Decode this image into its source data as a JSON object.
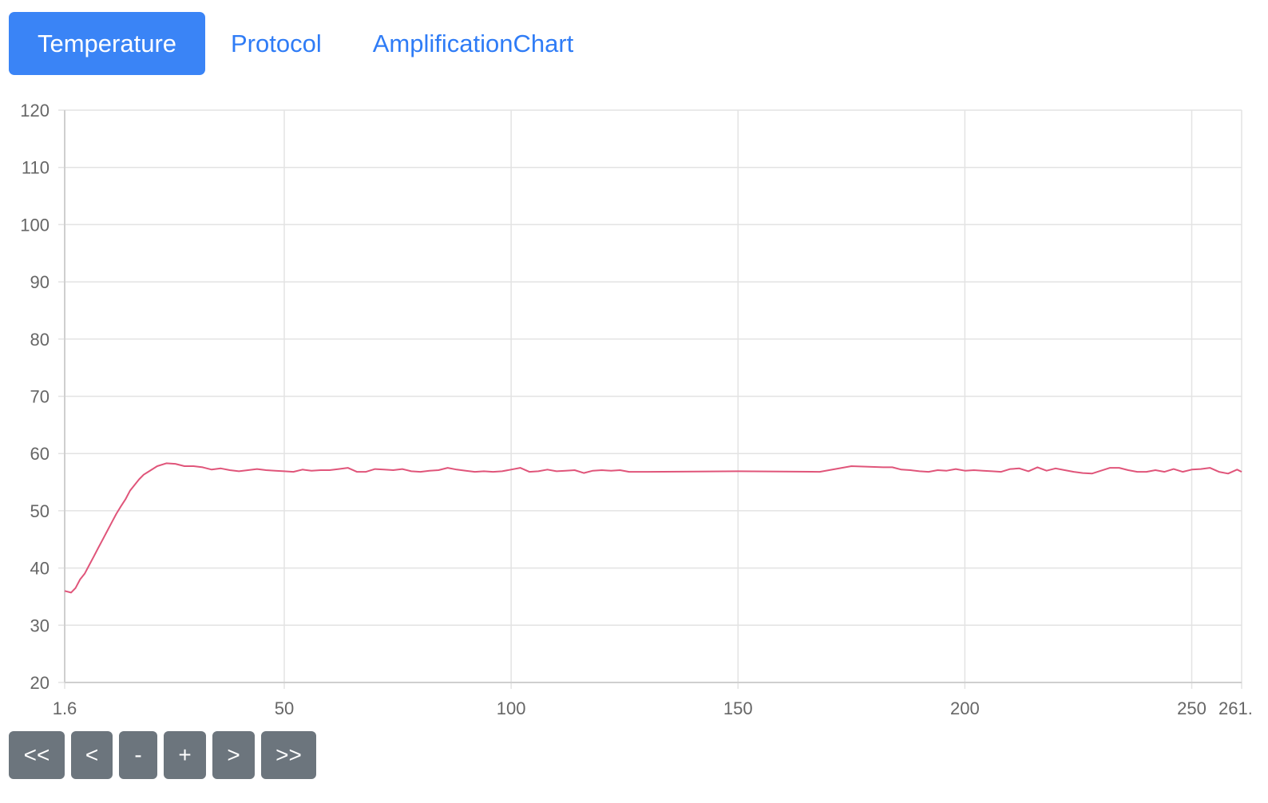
{
  "tabs": [
    {
      "label": "Temperature",
      "active": true
    },
    {
      "label": "Protocol",
      "active": false
    },
    {
      "label": "AmplificationChart",
      "active": false
    }
  ],
  "colors": {
    "tab_active_bg": "#3a84f6",
    "tab_link": "#2f7cf6",
    "series_line": "#e0557a",
    "button_bg": "#6c757d",
    "grid": "#e3e3e3"
  },
  "chart_data": {
    "type": "line",
    "title": "",
    "xlabel": "",
    "ylabel": "",
    "xlim": [
      1.6,
      261
    ],
    "ylim": [
      20,
      120
    ],
    "x_ticks": [
      1.6,
      50,
      100,
      150,
      200,
      250,
      261
    ],
    "x_tick_labels": [
      "1.6",
      "50",
      "100",
      "150",
      "200",
      "250",
      "261."
    ],
    "y_ticks": [
      20,
      30,
      40,
      50,
      60,
      70,
      80,
      90,
      100,
      110,
      120
    ],
    "y_tick_labels": [
      "20",
      "30",
      "40",
      "50",
      "60",
      "70",
      "80",
      "90",
      "100",
      "110",
      "120"
    ],
    "grid": true,
    "legend": "none",
    "series": [
      {
        "x": [
          1.6,
          3,
          4,
          5,
          6,
          7,
          8,
          9,
          10,
          11,
          12,
          13,
          14,
          15,
          16,
          17,
          18,
          19,
          20,
          22,
          24,
          26,
          28,
          30,
          32,
          34,
          36,
          38,
          40,
          42,
          44,
          46,
          48,
          50,
          52,
          54,
          56,
          58,
          60,
          62,
          64,
          66,
          68,
          70,
          72,
          74,
          76,
          78,
          80,
          82,
          84,
          86,
          88,
          90,
          92,
          94,
          96,
          98,
          100,
          102,
          104,
          106,
          108,
          110,
          112,
          114,
          116,
          118,
          120,
          122,
          124,
          126,
          128,
          130,
          150,
          168,
          175,
          182,
          184,
          186,
          188,
          190,
          192,
          194,
          196,
          198,
          200,
          202,
          204,
          206,
          208,
          210,
          212,
          214,
          216,
          218,
          220,
          222,
          224,
          226,
          228,
          230,
          232,
          234,
          236,
          238,
          240,
          242,
          244,
          246,
          248,
          250,
          252,
          254,
          256,
          258,
          260,
          261
        ],
        "y": [
          36,
          35.7,
          36.5,
          38,
          39,
          40.5,
          42,
          43.5,
          45,
          46.5,
          48,
          49.5,
          50.8,
          52,
          53.5,
          54.5,
          55.5,
          56.3,
          56.8,
          57.8,
          58.3,
          58.2,
          57.8,
          57.8,
          57.6,
          57.2,
          57.4,
          57.1,
          56.9,
          57.1,
          57.3,
          57.1,
          57.0,
          56.9,
          56.8,
          57.2,
          57.0,
          57.1,
          57.1,
          57.3,
          57.5,
          56.8,
          56.8,
          57.3,
          57.2,
          57.1,
          57.3,
          56.9,
          56.8,
          57.0,
          57.1,
          57.5,
          57.2,
          57.0,
          56.8,
          56.9,
          56.8,
          56.9,
          57.2,
          57.5,
          56.8,
          56.9,
          57.2,
          56.9,
          57.0,
          57.1,
          56.6,
          57.0,
          57.1,
          57.0,
          57.1,
          56.8,
          56.8,
          56.8,
          56.9,
          56.8,
          57.8,
          57.6,
          57.6,
          57.2,
          57.1,
          56.9,
          56.8,
          57.1,
          57.0,
          57.3,
          57.0,
          57.1,
          57.0,
          56.9,
          56.8,
          57.3,
          57.4,
          56.9,
          57.6,
          57.0,
          57.4,
          57.1,
          56.8,
          56.6,
          56.5,
          57.0,
          57.5,
          57.5,
          57.1,
          56.8,
          56.8,
          57.1,
          56.8,
          57.3,
          56.8,
          57.2,
          57.3,
          57.5,
          56.8,
          56.5,
          57.2,
          56.8
        ]
      }
    ]
  },
  "controls": {
    "first": "<<",
    "prev": "<",
    "zoom_out": "-",
    "zoom_in": "+",
    "next": ">",
    "last": ">>"
  }
}
